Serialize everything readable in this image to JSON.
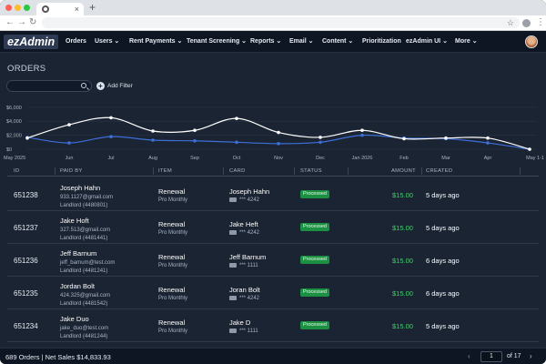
{
  "browser": {
    "dot_colors": [
      "#ff5f57",
      "#febc2e",
      "#28c840"
    ],
    "tab_close": "×",
    "new_tab": "+"
  },
  "nav": {
    "logo": "ezAdmin",
    "items": [
      {
        "label": "Orders",
        "dropdown": false
      },
      {
        "label": "Users",
        "dropdown": true
      },
      {
        "label": "Rent Payments",
        "dropdown": true
      },
      {
        "label": "Tenant Screening",
        "dropdown": true
      },
      {
        "label": "Reports",
        "dropdown": true
      },
      {
        "label": "Email",
        "dropdown": true
      },
      {
        "label": "Content",
        "dropdown": true
      },
      {
        "label": "Prioritization",
        "dropdown": false
      },
      {
        "label": "ezAdmin UI",
        "dropdown": true
      },
      {
        "label": "More",
        "dropdown": true
      }
    ]
  },
  "page": {
    "title": "ORDERS",
    "search_placeholder": "",
    "add_filter": "Add Filter"
  },
  "chart_data": {
    "type": "line",
    "x": [
      "May 2025",
      "Jun",
      "Jul",
      "Aug",
      "Sep",
      "Oct",
      "Nov",
      "Dec",
      "Jan 2026",
      "Feb",
      "Mar",
      "Apr",
      "May 1-1"
    ],
    "series": [
      {
        "values": [
          1600,
          3500,
          4500,
          2600,
          2700,
          4400,
          2400,
          1700,
          2700,
          1500,
          1600,
          1600,
          0
        ],
        "color": "#ffffff"
      },
      {
        "values": [
          1700,
          900,
          1800,
          1300,
          1200,
          1000,
          800,
          1000,
          2000,
          1600,
          1500,
          900,
          0
        ],
        "color": "#3d6fd9"
      }
    ],
    "y_ticks": [
      "$6,000",
      "$4,000",
      "$2,000",
      "$0"
    ],
    "ylim": [
      0,
      6500
    ],
    "grid": true
  },
  "table": {
    "headers": [
      "ID",
      "PAID BY",
      "ITEM",
      "CARD",
      "STATUS",
      "AMOUNT",
      "CREATED"
    ],
    "rows": [
      {
        "id": "651238",
        "name": "Joseph Hahn",
        "email": "933.1127@gmail.com",
        "landlord": "Landlord (4480801)",
        "item": "Renewal",
        "plan": "Pro Monthly",
        "card_name": "Joseph Hahn",
        "card_num": "*** 4242",
        "status": "Processed",
        "amount": "$15.00",
        "created": "5 days ago"
      },
      {
        "id": "651237",
        "name": "Jake Hoft",
        "email": "327.513@gmail.com",
        "landlord": "Landlord (4481441)",
        "item": "Renewal",
        "plan": "Pro Monthly",
        "card_name": "Jake Heft",
        "card_num": "*** 4242",
        "status": "Processed",
        "amount": "$15.00",
        "created": "5 days ago"
      },
      {
        "id": "651236",
        "name": "Jeff Barnum",
        "email": "jeff_barnum@test.com",
        "landlord": "Landlord (4481241)",
        "item": "Renewal",
        "plan": "Pro Monthly",
        "card_name": "Jeff Barnum",
        "card_num": "*** 1111",
        "status": "Processed",
        "amount": "$15.00",
        "created": "6 days ago"
      },
      {
        "id": "651235",
        "name": "Jordan Bolt",
        "email": "424.325@gmail.com",
        "landlord": "Landlord (4481542)",
        "item": "Renewal",
        "plan": "Pro Monthly",
        "card_name": "Joran Bolt",
        "card_num": "*** 4242",
        "status": "Processed",
        "amount": "$15.00",
        "created": "6 days ago"
      },
      {
        "id": "651234",
        "name": "Jake Duo",
        "email": "jake_duo@test.com",
        "landlord": "Landlord (4481244)",
        "item": "Renewal",
        "plan": "Pro Monthly",
        "card_name": "Jake D",
        "card_num": "*** 1111",
        "status": "Processed",
        "amount": "$15.00",
        "created": "5 days ago"
      }
    ]
  },
  "footer": {
    "summary": "689 Orders | Net Sales $14,833.93",
    "prev": "‹",
    "page": "1",
    "of_total": "of 17",
    "next": "›"
  }
}
